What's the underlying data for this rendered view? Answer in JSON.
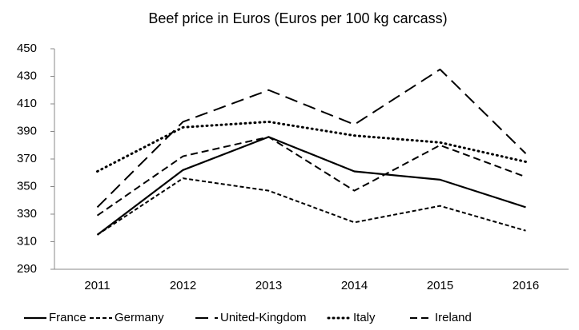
{
  "chart_data": {
    "type": "line",
    "title": "Beef price in Euros (Euros per 100 kg carcass)",
    "categories": [
      "2011",
      "2012",
      "2013",
      "2014",
      "2015",
      "2016"
    ],
    "series": [
      {
        "name": "France",
        "color": "#000000",
        "dash": "solid",
        "values": [
          315,
          362,
          386,
          361,
          355,
          335
        ]
      },
      {
        "name": "Germany",
        "color": "#000000",
        "dash": "short-dash",
        "values": [
          315,
          356,
          347,
          324,
          336,
          318
        ]
      },
      {
        "name": "United-Kingdom",
        "color": "#000000",
        "dash": "long-dash",
        "values": [
          335,
          397,
          420,
          395,
          435,
          374
        ]
      },
      {
        "name": "Italy",
        "color": "#000000",
        "dash": "dot",
        "values": [
          361,
          393,
          397,
          387,
          382,
          368
        ]
      },
      {
        "name": "Ireland",
        "color": "#000000",
        "dash": "dash",
        "values": [
          329,
          372,
          386,
          347,
          380,
          357
        ]
      }
    ],
    "ylim": [
      290,
      450
    ],
    "yticks": [
      290,
      310,
      330,
      350,
      370,
      390,
      410,
      430,
      450
    ],
    "grid": false,
    "legend": "bottom"
  }
}
